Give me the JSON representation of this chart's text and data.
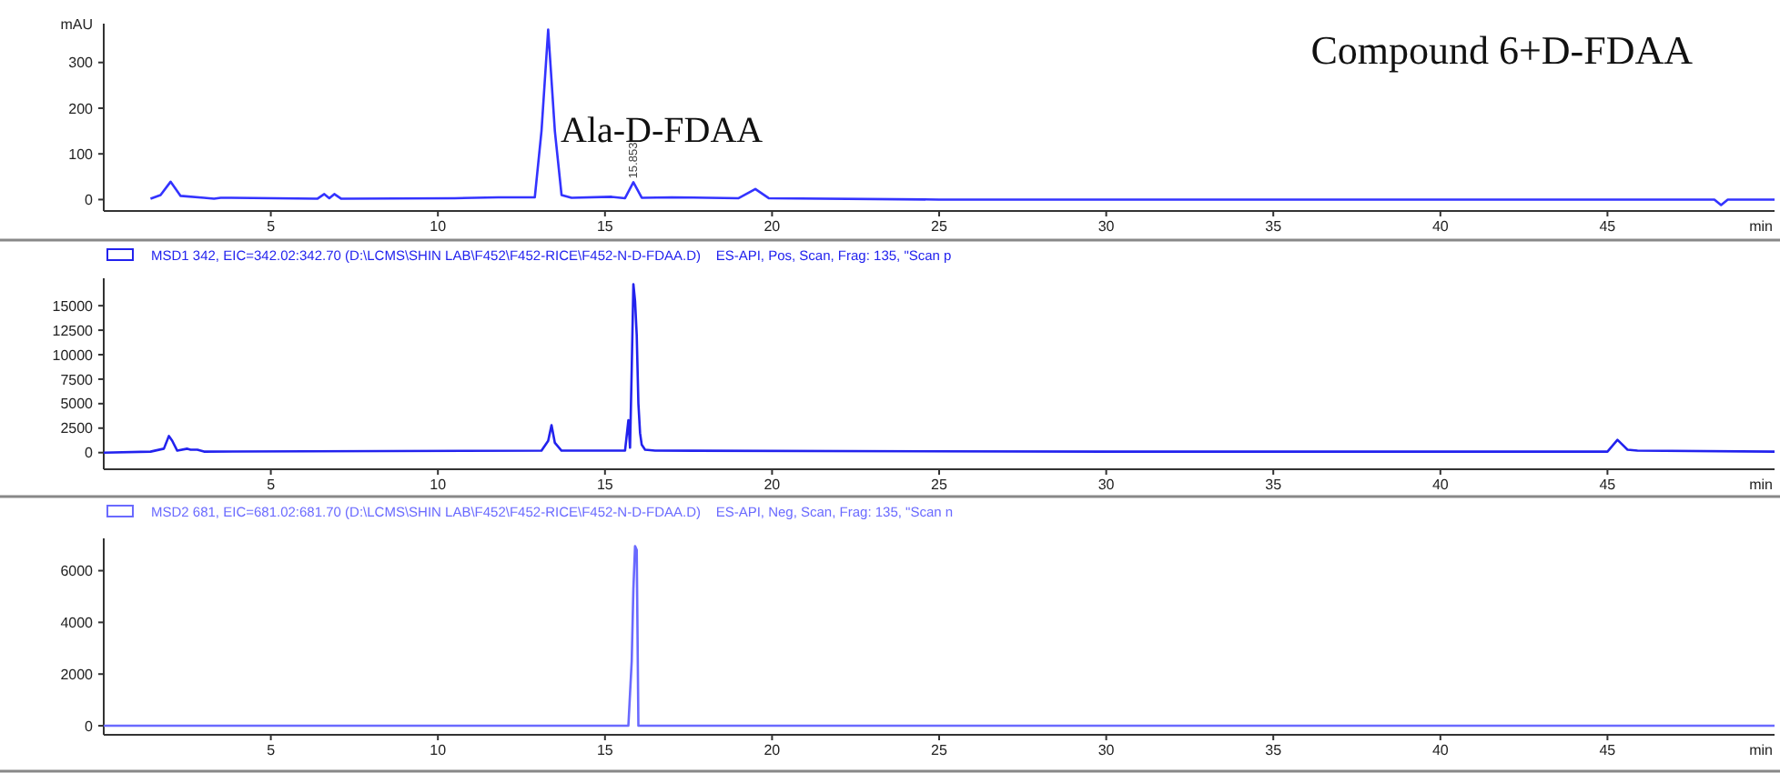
{
  "chart_data": [
    {
      "type": "line",
      "title": "Compound 6+D-FDAA",
      "ylabel": "mAU",
      "xlabel": "min",
      "xlim": [
        0,
        50
      ],
      "xticks": [
        5,
        10,
        15,
        20,
        25,
        30,
        35,
        40,
        45
      ],
      "ylim": [
        -25,
        385
      ],
      "yticks": [
        0,
        100,
        200,
        300
      ],
      "grid": false,
      "legend": false,
      "annotations": [
        {
          "text": "Ala-D-FDAA",
          "x": 15.85,
          "y": 38
        },
        {
          "text": "15.853",
          "x": 15.85,
          "y": 38
        }
      ],
      "series": [
        {
          "color": "#3333ff",
          "x": [
            1.4,
            1.7,
            2.0,
            2.3,
            3.0,
            3.3,
            3.5,
            6.4,
            6.6,
            6.75,
            6.9,
            7.1,
            10.5,
            11.8,
            12.4,
            12.9,
            13.1,
            13.3,
            13.5,
            13.7,
            14.0,
            15.2,
            15.6,
            15.85,
            16.1,
            17.0,
            19.0,
            19.5,
            19.9,
            25,
            30,
            35,
            40,
            45,
            48.2,
            48.4,
            48.6,
            50
          ],
          "values": [
            2,
            10,
            39,
            8,
            4,
            2,
            4,
            2,
            12,
            3,
            12,
            2,
            3,
            5,
            5,
            5,
            150,
            372,
            150,
            10,
            4,
            6,
            3,
            38,
            4,
            5,
            3,
            23,
            3,
            0,
            0,
            0,
            0,
            0,
            0,
            -12,
            0,
            0
          ]
        }
      ]
    },
    {
      "type": "line",
      "xlabel": "min",
      "xlim": [
        0,
        50
      ],
      "xticks": [
        5,
        10,
        15,
        20,
        25,
        30,
        35,
        40,
        45
      ],
      "ylim": [
        -1700,
        17800
      ],
      "yticks": [
        0,
        2500,
        5000,
        7500,
        10000,
        12500,
        15000
      ],
      "grid": false,
      "legend": "top left",
      "series": [
        {
          "name": "MSD1 342, EIC=342.02:342.70 (D:\\LCMS\\SHIN LAB\\F452\\F452-RICE\\F452-N-D-FDAA.D)    ES-API, Pos, Scan, Frag: 135, \"Scan p",
          "color": "#2222ee",
          "x": [
            0,
            1.4,
            1.8,
            1.95,
            2.05,
            2.2,
            2.5,
            2.6,
            2.8,
            3.0,
            13.1,
            13.3,
            13.4,
            13.5,
            13.7,
            15.6,
            15.7,
            15.75,
            15.8,
            15.85,
            15.9,
            15.95,
            16.0,
            16.05,
            16.1,
            16.2,
            16.5,
            30,
            45.0,
            45.3,
            45.6,
            45.9,
            50
          ],
          "values": [
            0,
            100,
            400,
            1700,
            1200,
            200,
            400,
            300,
            300,
            100,
            200,
            1200,
            2800,
            1000,
            200,
            200,
            3300,
            500,
            8500,
            17200,
            15500,
            12000,
            5000,
            2000,
            800,
            300,
            200,
            100,
            100,
            1300,
            300,
            200,
            100
          ]
        }
      ]
    },
    {
      "type": "line",
      "xlabel": "min",
      "xlim": [
        0,
        50
      ],
      "xticks": [
        5,
        10,
        15,
        20,
        25,
        30,
        35,
        40,
        45
      ],
      "ylim": [
        -350,
        7250
      ],
      "yticks": [
        0,
        2000,
        4000,
        6000
      ],
      "grid": false,
      "legend": "top left",
      "series": [
        {
          "name": "MSD2 681, EIC=681.02:681.70 (D:\\LCMS\\SHIN LAB\\F452\\F452-RICE\\F452-N-D-FDAA.D)    ES-API, Neg, Scan, Frag: 135, \"Scan n",
          "color": "#6a6aff",
          "x": [
            0,
            15.7,
            15.8,
            15.85,
            15.9,
            15.95,
            16.0,
            50
          ],
          "values": [
            0,
            0,
            2500,
            5300,
            6950,
            6800,
            0,
            0
          ]
        }
      ]
    }
  ]
}
